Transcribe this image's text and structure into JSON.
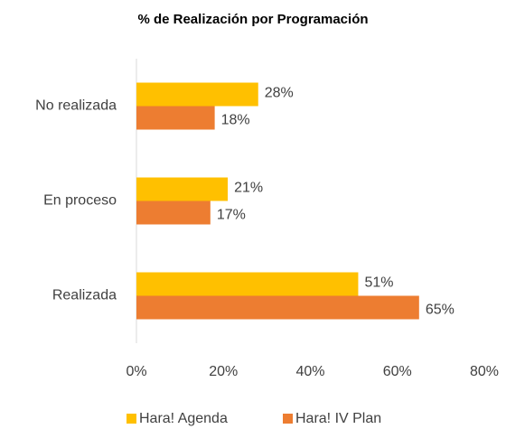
{
  "chart_data": {
    "type": "hbar",
    "title": "% de Realización por Programación",
    "categories": [
      "No realizada",
      "En proceso",
      "Realizada"
    ],
    "series": [
      {
        "name": "Hara! Agenda",
        "color": "#FFC000",
        "values": [
          28,
          21,
          51
        ],
        "value_labels": [
          "28%",
          "21%",
          "51%"
        ]
      },
      {
        "name": "Hara! IV Plan",
        "color": "#ED7D31",
        "values": [
          18,
          17,
          65
        ],
        "value_labels": [
          "18%",
          "17%",
          "65%"
        ]
      }
    ],
    "xlim": [
      0,
      80
    ],
    "xticks": [
      {
        "value": 0,
        "label": "0%"
      },
      {
        "value": 20,
        "label": "20%"
      },
      {
        "value": 40,
        "label": "40%"
      },
      {
        "value": 60,
        "label": "60%"
      },
      {
        "value": 80,
        "label": "80%"
      }
    ],
    "grid": false,
    "legend": "bottom"
  }
}
